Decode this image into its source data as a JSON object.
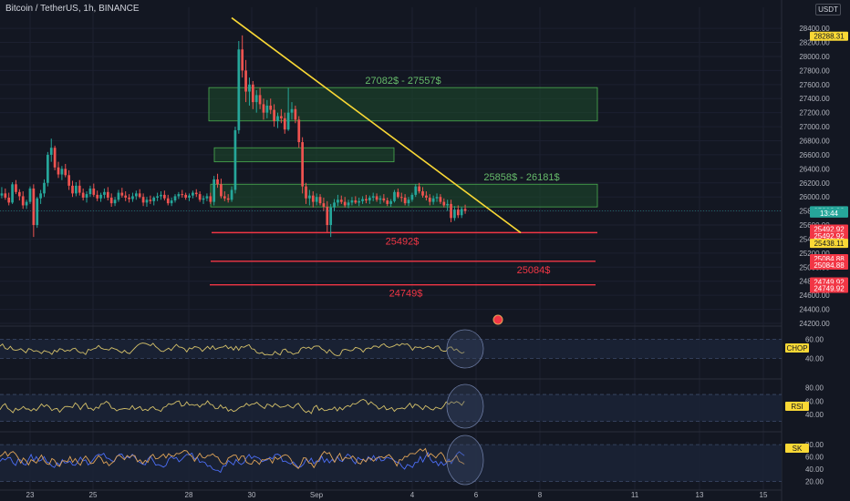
{
  "header": {
    "title": "Bitcoin / TetherUS, 1h, BINANCE",
    "unit": "USDT"
  },
  "chart_data": {
    "type": "candlestick",
    "x_ticks": [
      "23",
      "25",
      "28",
      "30",
      "Sep",
      "4",
      "6",
      "8",
      "11",
      "13",
      "15"
    ],
    "price_axis": {
      "ylim": [
        24200,
        28700
      ],
      "ticks": [
        "28400.00",
        "28200.00",
        "28000.00",
        "27800.00",
        "27600.00",
        "27400.00",
        "27200.00",
        "27000.00",
        "26800.00",
        "26600.00",
        "26400.00",
        "26200.00",
        "26000.00",
        "25800.00",
        "25600.00",
        "25400.00",
        "25200.00",
        "25000.00",
        "24800.00",
        "24600.00",
        "24400.00",
        "24200.00"
      ],
      "labels": [
        {
          "text": "28288.31",
          "value": 28288.31,
          "bg": "#f9d835",
          "fg": "#131722"
        },
        {
          "text": "25803.82",
          "value": 25803.82,
          "bg": "#26a69a",
          "fg": "#ffffff"
        },
        {
          "text": "13:44",
          "value": 25770,
          "bg": "#26a69a",
          "fg": "#ffffff"
        },
        {
          "text": "25492.92",
          "value": 25542,
          "bg": "#f23645",
          "fg": "#ffffff"
        },
        {
          "text": "25492.92",
          "value": 25442,
          "bg": "#f23645",
          "fg": "#ffffff"
        },
        {
          "text": "25438.11",
          "value": 25340,
          "bg": "#f9d835",
          "fg": "#131722"
        },
        {
          "text": "25084.88",
          "value": 25120,
          "bg": "#f23645",
          "fg": "#ffffff"
        },
        {
          "text": "25084.88",
          "value": 25030,
          "bg": "#f23645",
          "fg": "#ffffff"
        },
        {
          "text": "24749.92",
          "value": 24790,
          "bg": "#f23645",
          "fg": "#ffffff"
        },
        {
          "text": "24749.92",
          "value": 24700,
          "bg": "#f23645",
          "fg": "#ffffff"
        }
      ]
    },
    "zones": [
      {
        "low": 27082,
        "high": 27557,
        "label": "27082$ - 27557$"
      },
      {
        "low": 26500,
        "high": 26700,
        "label": ""
      },
      {
        "low": 25858,
        "high": 26181,
        "label": "25858$ - 26181$"
      }
    ],
    "support_levels": [
      {
        "value": 25492,
        "label": "25492$"
      },
      {
        "value": 25084,
        "label": "25084$"
      },
      {
        "value": 24749,
        "label": "24749$"
      }
    ],
    "trendline": {
      "from": {
        "x": "29",
        "y": 28550
      },
      "to": {
        "x": "Sep 6",
        "y": 25490
      }
    },
    "price_series": [
      [
        26020,
        26140,
        25980,
        26050
      ],
      [
        26050,
        26120,
        25960,
        25990
      ],
      [
        25990,
        26060,
        25880,
        25920
      ],
      [
        25920,
        26210,
        25900,
        26180
      ],
      [
        26180,
        26240,
        26040,
        26070
      ],
      [
        26070,
        26110,
        25950,
        26010
      ],
      [
        26010,
        26080,
        25830,
        25880
      ],
      [
        25880,
        25960,
        25830,
        25930
      ],
      [
        25930,
        26150,
        25900,
        26120
      ],
      [
        26120,
        26180,
        25430,
        25600
      ],
      [
        25600,
        26000,
        25560,
        25980
      ],
      [
        25980,
        26100,
        25900,
        26050
      ],
      [
        26050,
        26250,
        26000,
        26200
      ],
      [
        26200,
        26640,
        26150,
        26600
      ],
      [
        26600,
        26830,
        26500,
        26700
      ],
      [
        26700,
        26730,
        26380,
        26420
      ],
      [
        26420,
        26500,
        26270,
        26320
      ],
      [
        26320,
        26440,
        26240,
        26400
      ],
      [
        26400,
        26470,
        26280,
        26310
      ],
      [
        26310,
        26380,
        26100,
        26160
      ],
      [
        26160,
        26230,
        26000,
        26050
      ],
      [
        26050,
        26210,
        26010,
        26160
      ],
      [
        26160,
        26240,
        26020,
        26060
      ],
      [
        26060,
        26120,
        25950,
        25990
      ],
      [
        25990,
        26080,
        25920,
        26040
      ],
      [
        26040,
        26160,
        26000,
        26120
      ],
      [
        26120,
        26190,
        26000,
        26030
      ],
      [
        26030,
        26090,
        25940,
        25980
      ],
      [
        25980,
        26060,
        25930,
        26030
      ],
      [
        26030,
        26120,
        25980,
        26070
      ],
      [
        26070,
        26140,
        25950,
        25990
      ],
      [
        25990,
        26050,
        25860,
        25910
      ],
      [
        25910,
        26000,
        25870,
        25960
      ],
      [
        25960,
        26100,
        25930,
        26060
      ],
      [
        26060,
        26130,
        25990,
        26020
      ],
      [
        26020,
        26080,
        25940,
        25990
      ],
      [
        25990,
        26040,
        25920,
        25970
      ],
      [
        25970,
        26060,
        25930,
        26010
      ],
      [
        26010,
        26090,
        25960,
        26050
      ],
      [
        26050,
        26110,
        25980,
        26000
      ],
      [
        26000,
        26050,
        25870,
        25920
      ],
      [
        25920,
        26000,
        25860,
        25960
      ],
      [
        25960,
        26020,
        25900,
        25940
      ],
      [
        25940,
        26010,
        25880,
        25990
      ],
      [
        25990,
        26060,
        25940,
        26010
      ],
      [
        26010,
        26080,
        25960,
        26030
      ],
      [
        26030,
        26090,
        25950,
        25980
      ],
      [
        25980,
        26030,
        25880,
        25910
      ],
      [
        25910,
        25990,
        25870,
        25950
      ],
      [
        25950,
        26040,
        25920,
        26010
      ],
      [
        26010,
        26070,
        25970,
        26040
      ],
      [
        26040,
        26100,
        25990,
        26030
      ],
      [
        26030,
        26060,
        25960,
        25990
      ],
      [
        25990,
        26050,
        25940,
        26020
      ],
      [
        26020,
        26090,
        25980,
        26060
      ],
      [
        26060,
        26110,
        26000,
        26040
      ],
      [
        26040,
        26080,
        25930,
        25960
      ],
      [
        25960,
        26020,
        25900,
        25980
      ],
      [
        25980,
        26050,
        25940,
        26010
      ],
      [
        26010,
        26060,
        25900,
        25930
      ],
      [
        25930,
        26300,
        25880,
        26250
      ],
      [
        26250,
        26330,
        26130,
        26180
      ],
      [
        26180,
        26260,
        25980,
        26010
      ],
      [
        26010,
        26080,
        25940,
        25980
      ],
      [
        25980,
        26040,
        25920,
        25960
      ],
      [
        25960,
        26150,
        25930,
        26100
      ],
      [
        26100,
        27000,
        26050,
        26950
      ],
      [
        26950,
        28220,
        26900,
        28100
      ],
      [
        28100,
        28300,
        27700,
        27800
      ],
      [
        27800,
        27950,
        27350,
        27500
      ],
      [
        27500,
        27700,
        27300,
        27600
      ],
      [
        27600,
        27650,
        27250,
        27350
      ],
      [
        27350,
        27520,
        27200,
        27450
      ],
      [
        27450,
        27550,
        27250,
        27320
      ],
      [
        27320,
        27400,
        27100,
        27200
      ],
      [
        27200,
        27380,
        27120,
        27300
      ],
      [
        27300,
        27400,
        27180,
        27240
      ],
      [
        27240,
        27320,
        27000,
        27080
      ],
      [
        27080,
        27200,
        26980,
        27150
      ],
      [
        27150,
        27250,
        27050,
        27120
      ],
      [
        27120,
        27200,
        26900,
        26960
      ],
      [
        26960,
        27550,
        26940,
        27200
      ],
      [
        27200,
        27350,
        27100,
        27250
      ],
      [
        27250,
        27300,
        27050,
        27100
      ],
      [
        27100,
        27150,
        26700,
        26780
      ],
      [
        26780,
        26850,
        26050,
        26150
      ],
      [
        26150,
        26200,
        25900,
        25980
      ],
      [
        25980,
        26100,
        25880,
        26020
      ],
      [
        26020,
        26080,
        25850,
        25930
      ],
      [
        25930,
        26050,
        25880,
        26000
      ],
      [
        26000,
        26040,
        25880,
        25910
      ],
      [
        25910,
        25990,
        25800,
        25860
      ],
      [
        25860,
        25940,
        25500,
        25600
      ],
      [
        25600,
        25900,
        25430,
        25850
      ],
      [
        25850,
        25970,
        25800,
        25920
      ],
      [
        25920,
        26030,
        25870,
        25960
      ],
      [
        25960,
        26020,
        25900,
        25930
      ],
      [
        25930,
        26000,
        25850,
        25880
      ],
      [
        25880,
        25960,
        25840,
        25920
      ],
      [
        25920,
        26000,
        25880,
        25950
      ],
      [
        25950,
        26010,
        25900,
        25920
      ],
      [
        25920,
        25990,
        25870,
        25940
      ],
      [
        25940,
        26010,
        25900,
        25970
      ],
      [
        25970,
        26030,
        25910,
        25950
      ],
      [
        25950,
        26020,
        25900,
        25990
      ],
      [
        25990,
        26060,
        25940,
        26010
      ],
      [
        26010,
        26050,
        25930,
        25960
      ],
      [
        25960,
        26020,
        25900,
        25980
      ],
      [
        25980,
        26040,
        25920,
        25950
      ],
      [
        25950,
        25990,
        25870,
        25900
      ],
      [
        25900,
        25970,
        25860,
        25940
      ],
      [
        25940,
        26100,
        25920,
        26070
      ],
      [
        26070,
        26120,
        25980,
        26000
      ],
      [
        26000,
        26060,
        25930,
        25990
      ],
      [
        25990,
        26040,
        25880,
        25910
      ],
      [
        25910,
        26000,
        25870,
        25960
      ],
      [
        25960,
        26060,
        25930,
        26030
      ],
      [
        26030,
        26180,
        26000,
        26150
      ],
      [
        26150,
        26200,
        26050,
        26080
      ],
      [
        26080,
        26140,
        25990,
        26020
      ],
      [
        26020,
        26080,
        25950,
        25990
      ],
      [
        25990,
        26040,
        25880,
        25930
      ],
      [
        25930,
        26020,
        25890,
        25980
      ],
      [
        25980,
        26050,
        25930,
        26000
      ],
      [
        26000,
        26040,
        25900,
        25930
      ],
      [
        25930,
        25980,
        25850,
        25880
      ],
      [
        25880,
        25960,
        25800,
        25900
      ],
      [
        25900,
        25960,
        25640,
        25700
      ],
      [
        25700,
        25870,
        25660,
        25820
      ],
      [
        25820,
        25880,
        25700,
        25740
      ],
      [
        25740,
        25860,
        25700,
        25830
      ],
      [
        25830,
        25890,
        25760,
        25800
      ]
    ],
    "indicators": [
      {
        "name": "CHOP",
        "ticks": [
          "60.00",
          "40.00"
        ],
        "range": [
          30,
          70
        ],
        "band": [
          40,
          60
        ]
      },
      {
        "name": "RSI",
        "ticks": [
          "80.00",
          "60.00",
          "40.00"
        ],
        "range": [
          20,
          85
        ],
        "band": [
          30,
          70
        ]
      },
      {
        "name": "SK",
        "ticks": [
          "80.00",
          "60.00",
          "40.00",
          "20.00"
        ],
        "range": [
          15,
          95
        ],
        "band": [
          20,
          80
        ]
      }
    ]
  },
  "colors": {
    "background": "#131722",
    "up": "#26a69a",
    "down": "#ef5350",
    "zone_fill": "#1e4d2b",
    "zone_stroke": "#4caf50",
    "zone_label": "#66bb6a",
    "support": "#f23645",
    "trendline": "#f9d835",
    "indicator_line": "#d6c26a",
    "band_fill": "#1b2235",
    "band_border": "#3d4a6a",
    "stoch_k": "#4c6ef5",
    "stoch_d": "#e0a458"
  }
}
